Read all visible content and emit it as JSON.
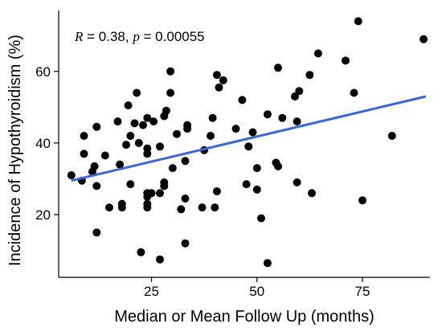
{
  "chart_data": {
    "type": "scatter",
    "xlabel": "Median or Mean Follow Up (months)",
    "ylabel": "Incidence of Hypothyroidism (%)",
    "xlim": [
      3,
      91
    ],
    "ylim": [
      2.5,
      77
    ],
    "xticks": [
      25,
      50,
      75
    ],
    "yticks": [
      20,
      40,
      60
    ],
    "annotation": {
      "r_label": "R",
      "r_text": " = 0.38, ",
      "p_label": "p",
      "p_text": " = 0.00055"
    },
    "regression": {
      "x": [
        6,
        90
      ],
      "y": [
        29.5,
        53
      ]
    },
    "regression_color": "#3b66d8",
    "point_color": "#000000",
    "points": [
      [
        6,
        31
      ],
      [
        8.5,
        29.5
      ],
      [
        9,
        42
      ],
      [
        9,
        37
      ],
      [
        11,
        32
      ],
      [
        11.5,
        33.5
      ],
      [
        12,
        44.5
      ],
      [
        12,
        28
      ],
      [
        12,
        15
      ],
      [
        14,
        36.5
      ],
      [
        15,
        22
      ],
      [
        17,
        46
      ],
      [
        17.5,
        34
      ],
      [
        18,
        22
      ],
      [
        18,
        23
      ],
      [
        19,
        39.5
      ],
      [
        19.5,
        50.5
      ],
      [
        20,
        42
      ],
      [
        20,
        28.5
      ],
      [
        21,
        45.5
      ],
      [
        21.5,
        54
      ],
      [
        22,
        40
      ],
      [
        22.5,
        9.5
      ],
      [
        23,
        45
      ],
      [
        24,
        47
      ],
      [
        24,
        38.5
      ],
      [
        24,
        37
      ],
      [
        24,
        26
      ],
      [
        24,
        25
      ],
      [
        24,
        23
      ],
      [
        24,
        22
      ],
      [
        25,
        26
      ],
      [
        25.5,
        46
      ],
      [
        27,
        39
      ],
      [
        27,
        26
      ],
      [
        27,
        7.5
      ],
      [
        28,
        29
      ],
      [
        28,
        28
      ],
      [
        28,
        47.5
      ],
      [
        28.5,
        49
      ],
      [
        29.5,
        54
      ],
      [
        29.5,
        60
      ],
      [
        30,
        33
      ],
      [
        31,
        42.5
      ],
      [
        32,
        21.5
      ],
      [
        33,
        35
      ],
      [
        33,
        24.5
      ],
      [
        33,
        12
      ],
      [
        33.5,
        45
      ],
      [
        33.5,
        44
      ],
      [
        37,
        22
      ],
      [
        37.5,
        38
      ],
      [
        39,
        42
      ],
      [
        39.5,
        47
      ],
      [
        40,
        22
      ],
      [
        40.5,
        26.5
      ],
      [
        40.5,
        59
      ],
      [
        41,
        55.5
      ],
      [
        42,
        57.5
      ],
      [
        45,
        44
      ],
      [
        46.5,
        52
      ],
      [
        47.5,
        28.5
      ],
      [
        48,
        39
      ],
      [
        49,
        43
      ],
      [
        50,
        33
      ],
      [
        50,
        27
      ],
      [
        51,
        19
      ],
      [
        52.5,
        6.5
      ],
      [
        52.5,
        48
      ],
      [
        54.5,
        34.5
      ],
      [
        55,
        61
      ],
      [
        55,
        33.5
      ],
      [
        56,
        47
      ],
      [
        59,
        53
      ],
      [
        59.5,
        46
      ],
      [
        59.5,
        29
      ],
      [
        60,
        54.5
      ],
      [
        62.5,
        59
      ],
      [
        63,
        26
      ],
      [
        64.5,
        65
      ],
      [
        71,
        63
      ],
      [
        73,
        54
      ],
      [
        74,
        74
      ],
      [
        75,
        24
      ],
      [
        82,
        42
      ],
      [
        89.5,
        69
      ]
    ]
  }
}
